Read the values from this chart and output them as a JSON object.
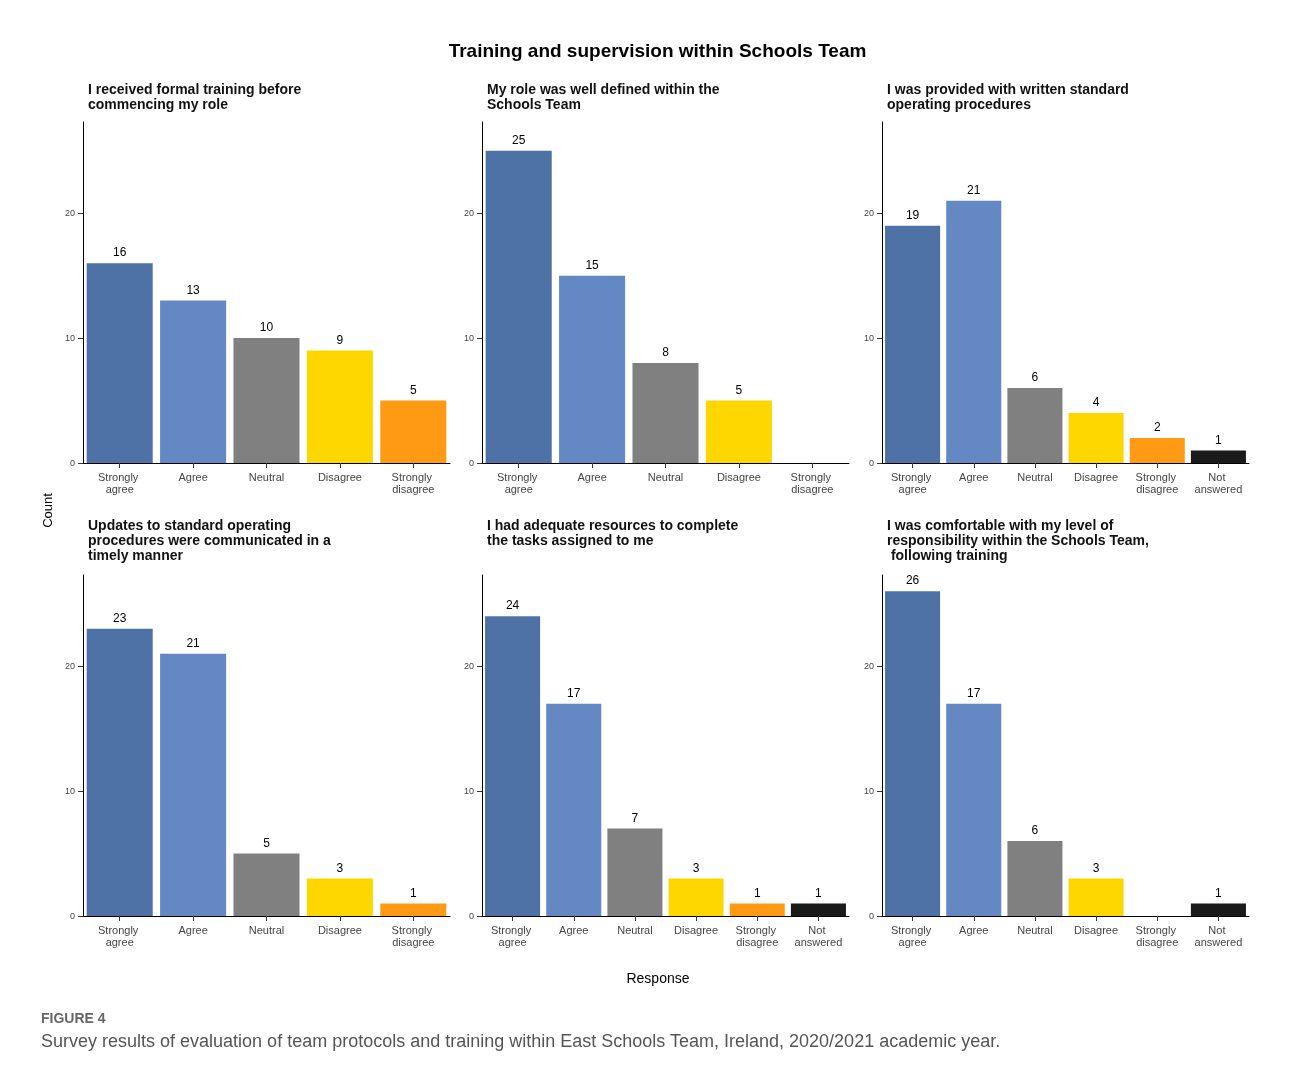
{
  "chart_data": [
    {
      "type": "other",
      "title": "Training and supervision within Schools Team",
      "xlabel": "Response",
      "ylabel": "Count",
      "annotations": [
        "FIGURE 4",
        "Survey results of evaluation of team protocols and training within East Schools Team, Ireland, 2020/2021 academic year."
      ]
    },
    {
      "type": "bar",
      "title": "I received formal training before commencing my role",
      "categories": [
        "Strongly agree",
        "Agree",
        "Neutral",
        "Disagree",
        "Strongly disagree"
      ],
      "values": [
        16,
        13,
        10,
        9,
        5
      ],
      "colors": [
        "#4f72a6",
        "#6488c3",
        "#808080",
        "#ffd700",
        "#ff9a14"
      ],
      "ylim": [
        0,
        27.3
      ],
      "yticks": [
        0,
        10,
        20
      ],
      "data_labels": true
    },
    {
      "type": "bar",
      "title": "My role was well defined within the Schools Team",
      "categories": [
        "Strongly agree",
        "Agree",
        "Neutral",
        "Disagree",
        "Strongly disagree"
      ],
      "values": [
        25,
        15,
        8,
        5,
        null
      ],
      "colors": [
        "#4f72a6",
        "#6488c3",
        "#808080",
        "#ffd700",
        "#ff9a14"
      ],
      "ylim": [
        0,
        27.3
      ],
      "yticks": [
        0,
        10,
        20
      ],
      "data_labels": true
    },
    {
      "type": "bar",
      "title": "I was provided with written standard operating procedures",
      "categories": [
        "Strongly agree",
        "Agree",
        "Neutral",
        "Disagree",
        "Strongly disagree",
        "Not answered"
      ],
      "values": [
        19,
        21,
        6,
        4,
        2,
        1
      ],
      "colors": [
        "#4f72a6",
        "#6488c3",
        "#808080",
        "#ffd700",
        "#ff9a14",
        "#1a1a1a"
      ],
      "ylim": [
        0,
        27.3
      ],
      "yticks": [
        0,
        10,
        20
      ],
      "data_labels": true
    },
    {
      "type": "bar",
      "title": "Updates to standard operating procedures were communicated in a timely manner",
      "categories": [
        "Strongly agree",
        "Agree",
        "Neutral",
        "Disagree",
        "Strongly disagree"
      ],
      "values": [
        23,
        21,
        5,
        3,
        1
      ],
      "colors": [
        "#4f72a6",
        "#6488c3",
        "#808080",
        "#ffd700",
        "#ff9a14"
      ],
      "ylim": [
        0,
        27.3
      ],
      "yticks": [
        0,
        10,
        20
      ],
      "data_labels": true
    },
    {
      "type": "bar",
      "title": "I had adequate resources to complete the tasks assigned to me",
      "categories": [
        "Strongly agree",
        "Agree",
        "Neutral",
        "Disagree",
        "Strongly disagree",
        "Not answered"
      ],
      "values": [
        24,
        17,
        7,
        3,
        1,
        1
      ],
      "colors": [
        "#4f72a6",
        "#6488c3",
        "#808080",
        "#ffd700",
        "#ff9a14",
        "#1a1a1a"
      ],
      "ylim": [
        0,
        27.3
      ],
      "yticks": [
        0,
        10,
        20
      ],
      "data_labels": true
    },
    {
      "type": "bar",
      "title": "I was comfortable with my level of responsibility within the Schools Team, following training",
      "categories": [
        "Strongly agree",
        "Agree",
        "Neutral",
        "Disagree",
        "Strongly disagree",
        "Not answered"
      ],
      "values": [
        26,
        17,
        6,
        3,
        null,
        1
      ],
      "colors": [
        "#4f72a6",
        "#6488c3",
        "#808080",
        "#ffd700",
        "#ff9a14",
        "#1a1a1a"
      ],
      "ylim": [
        0,
        27.3
      ],
      "yticks": [
        0,
        10,
        20
      ],
      "data_labels": true
    }
  ]
}
